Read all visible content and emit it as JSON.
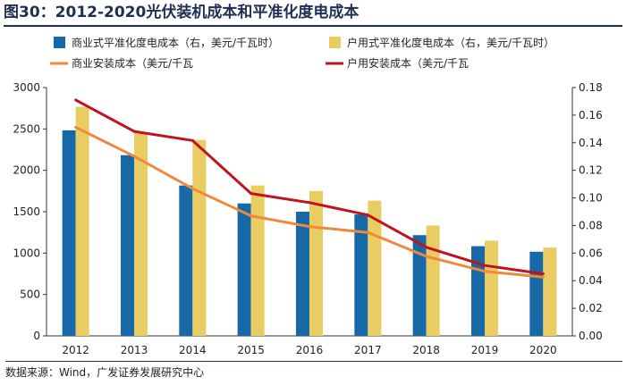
{
  "figure": {
    "title": "图30：2012-2020光伏装机成本和平准化度电成本",
    "source": "数据来源：Wind，广发证券发展研究中心"
  },
  "colors": {
    "bar_commercial": "#1668a6",
    "bar_household": "#e9cd62",
    "line_commercial": "#ef8a3c",
    "line_household": "#c0131f"
  },
  "chart_data": {
    "type": "bar",
    "categories": [
      "2012",
      "2013",
      "2014",
      "2015",
      "2016",
      "2017",
      "2018",
      "2019",
      "2020"
    ],
    "series": [
      {
        "name": "商业式平准化度电成本（右，美元/千瓦时）",
        "kind": "bar",
        "axis": "right",
        "values": [
          0.149,
          0.131,
          0.109,
          0.096,
          0.09,
          0.088,
          0.073,
          0.065,
          0.061
        ]
      },
      {
        "name": "户用式平准化度电成本（右，美元/千瓦时）",
        "kind": "bar",
        "axis": "right",
        "values": [
          0.166,
          0.147,
          0.142,
          0.109,
          0.105,
          0.098,
          0.08,
          0.069,
          0.064
        ]
      },
      {
        "name": "商业安装成本（美元/千瓦",
        "kind": "line",
        "axis": "left",
        "values": [
          2520,
          2170,
          1780,
          1450,
          1320,
          1250,
          960,
          780,
          710
        ]
      },
      {
        "name": "户用安装成本（美元/千瓦",
        "kind": "line",
        "axis": "left",
        "values": [
          2850,
          2470,
          2360,
          1720,
          1610,
          1460,
          1070,
          850,
          750
        ]
      }
    ],
    "left_axis": {
      "ylim": [
        0,
        3000
      ],
      "ticks": [
        "0",
        "500",
        "1000",
        "1500",
        "2000",
        "2500",
        "3000"
      ]
    },
    "right_axis": {
      "ylim": [
        0,
        0.18
      ],
      "ticks": [
        "0.00",
        "0.02",
        "0.04",
        "0.06",
        "0.08",
        "0.10",
        "0.12",
        "0.14",
        "0.16",
        "0.18"
      ]
    },
    "legend": "top"
  }
}
